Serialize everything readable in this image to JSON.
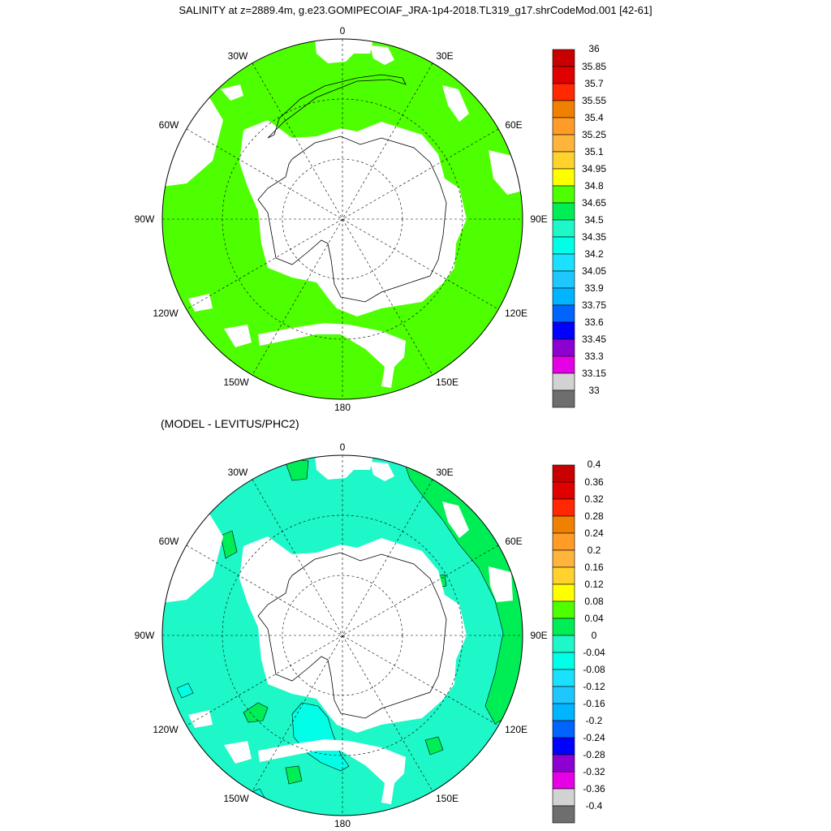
{
  "title": "SALINITY at z=2889.4m, g.e23.GOMIPECOIAF_JRA-1p4-2018.TL319_g17.shrCodeMod.001 [42-61]",
  "subtitle": "(MODEL - LEVITUS/PHC2)",
  "longitude_labels": [
    "0",
    "30E",
    "60E",
    "90E",
    "120E",
    "150E",
    "180",
    "150W",
    "120W",
    "90W",
    "60W",
    "30W"
  ],
  "panel_top": {
    "fill_color": "#4dff00",
    "colorbar": {
      "labels": [
        "36",
        "35.85",
        "35.7",
        "35.55",
        "35.4",
        "35.25",
        "35.1",
        "34.95",
        "34.8",
        "34.65",
        "34.5",
        "34.35",
        "34.2",
        "34.05",
        "33.9",
        "33.75",
        "33.6",
        "33.45",
        "33.3",
        "33.15",
        "33"
      ],
      "colors": [
        "#c80000",
        "#e00000",
        "#ff2800",
        "#f08000",
        "#ff9c28",
        "#ffb43c",
        "#ffd22d",
        "#ffff00",
        "#4dff00",
        "#00ee55",
        "#1ef7c8",
        "#00ffe6",
        "#19e1ff",
        "#1ec8ff",
        "#00b4ff",
        "#0064ff",
        "#0000ff",
        "#8c00d2",
        "#e600e6",
        "#d2d2d2",
        "#6e6e6e"
      ]
    }
  },
  "panel_bottom": {
    "fill_color": "#1ef7c8",
    "colorbar": {
      "labels": [
        "0.4",
        "0.36",
        "0.32",
        "0.28",
        "0.24",
        "0.2",
        "0.16",
        "0.12",
        "0.08",
        "0.04",
        "0",
        "-0.04",
        "-0.08",
        "-0.12",
        "-0.16",
        "-0.2",
        "-0.24",
        "-0.28",
        "-0.32",
        "-0.36",
        "-0.4"
      ],
      "colors": [
        "#c80000",
        "#e00000",
        "#ff2800",
        "#f08000",
        "#ff9c28",
        "#ffb43c",
        "#ffd22d",
        "#ffff00",
        "#4dff00",
        "#00ee55",
        "#1ef7c8",
        "#00ffe6",
        "#19e1ff",
        "#1ec8ff",
        "#00b4ff",
        "#0064ff",
        "#0000ff",
        "#8c00d2",
        "#e600e6",
        "#d2d2d2",
        "#6e6e6e"
      ]
    }
  }
}
